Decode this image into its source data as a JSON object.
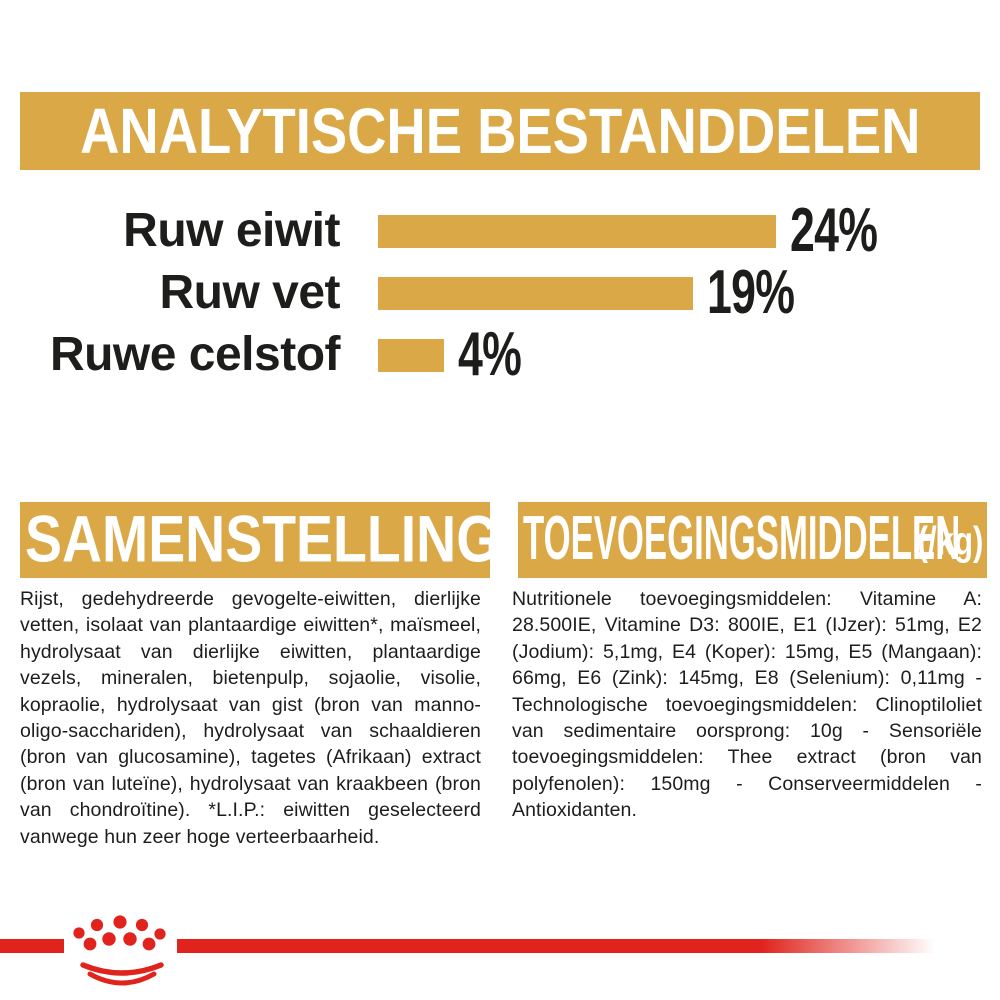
{
  "colors": {
    "gold": "#DBA848",
    "red": "#E0231C",
    "text": "#1D1D1B",
    "header_text": "#FFFFFF"
  },
  "analytical_header": {
    "title": "ANALYTISCHE BESTANDDELEN"
  },
  "chart_data": {
    "type": "bar",
    "orientation": "horizontal",
    "title": "ANALYTISCHE BESTANDDELEN",
    "categories": [
      "Ruw eiwit",
      "Ruw vet",
      "Ruwe celstof"
    ],
    "values": [
      24,
      19,
      4
    ],
    "value_labels": [
      "24%",
      "19%",
      "4%"
    ],
    "unit": "%",
    "xlim": [
      0,
      24
    ],
    "bar_color": "#DBA848",
    "grid": false,
    "legend": false,
    "value_label_position": "right-of-bar"
  },
  "composition": {
    "title": "SAMENSTELLING",
    "body": "Rijst, gedehydreerde gevogelte-eiwitten, dierlijke vetten, isolaat van plantaardige eiwitten*, maïsmeel, hydrolysaat van dierlijke eiwitten, plantaardige vezels, mineralen, bietenpulp, sojaolie, visolie, kopraolie, hydrolysaat van gist (bron van manno-oligo-sacchariden), hydrolysaat van schaaldieren (bron van glucosamine), tagetes (Afrikaan) extract (bron van luteïne), hydrolysaat van kraakbeen (bron van chondroïtine). *L.I.P.: eiwitten geselecteerd vanwege hun zeer hoge verteerbaarheid."
  },
  "additives": {
    "title": "TOEVOEGINGSMIDDELEN",
    "suffix": "(/kg)",
    "body": "Nutritionele toevoegingsmiddelen: Vitamine A: 28.500IE, Vitamine D3: 800IE, E1 (IJzer): 51mg, E2 (Jodium): 5,1mg, E4 (Koper): 15mg, E5 (Mangaan): 66mg, E6 (Zink): 145mg, E8 (Selenium): 0,11mg - Technologische toevoegingsmiddelen: Clinoptiloliet van sedimentaire oorsprong: 10g - Sensoriële toevoegingsmiddelen: Thee extract (bron van polyfenolen): 150mg - Conserveermiddelen - Antioxidanten."
  },
  "footer": {
    "logo": "royal-canin-crown"
  }
}
